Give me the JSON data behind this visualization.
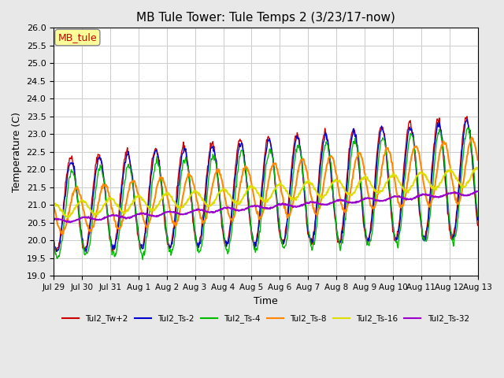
{
  "title": "MB Tule Tower: Tule Temps 2 (3/23/17-now)",
  "xlabel": "Time",
  "ylabel": "Temperature (C)",
  "ylim": [
    19.0,
    26.0
  ],
  "yticks": [
    19.0,
    19.5,
    20.0,
    20.5,
    21.0,
    21.5,
    22.0,
    22.5,
    23.0,
    23.5,
    24.0,
    24.5,
    25.0,
    25.5,
    26.0
  ],
  "xtick_labels": [
    "Jul 29",
    "Jul 30",
    "Jul 31",
    "Aug 1",
    "Aug 2",
    "Aug 3",
    "Aug 4",
    "Aug 5",
    "Aug 6",
    "Aug 7",
    "Aug 8",
    "Aug 9",
    "Aug 10",
    "Aug 11",
    "Aug 12",
    "Aug 13"
  ],
  "series_colors": {
    "Tul2_Tw+2": "#cc0000",
    "Tul2_Ts-2": "#0000cc",
    "Tul2_Ts-4": "#00bb00",
    "Tul2_Ts-8": "#ff8800",
    "Tul2_Ts-16": "#dddd00",
    "Tul2_Ts-32": "#9900cc"
  },
  "legend_label": "MB_tule",
  "background_color": "#e8e8e8",
  "plot_bg_color": "#ffffff",
  "grid_color": "#cccccc"
}
